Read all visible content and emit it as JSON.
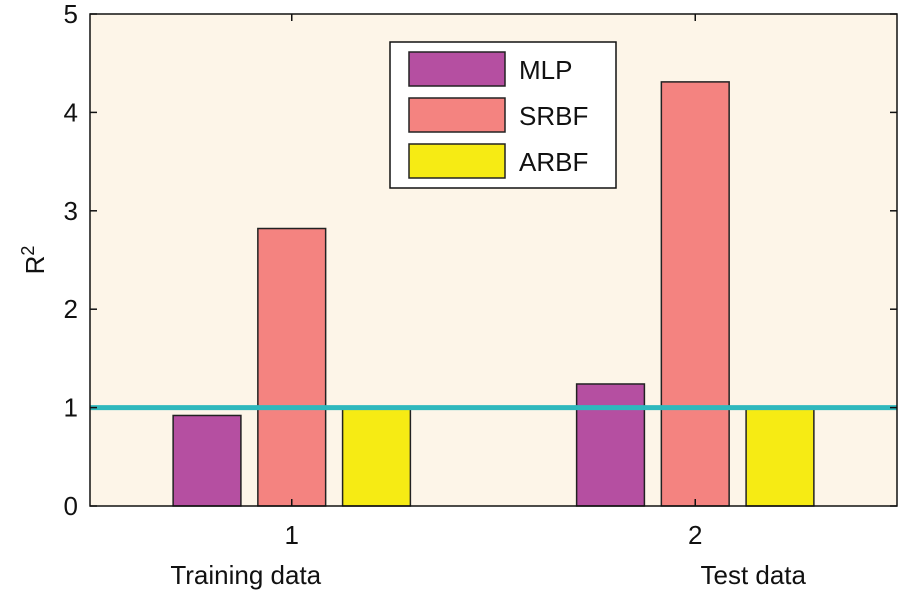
{
  "chart_data": {
    "type": "bar",
    "categories": [
      "1",
      "2"
    ],
    "category_labels": [
      "Training data",
      "Test data"
    ],
    "series": [
      {
        "name": "MLP",
        "values": [
          0.92,
          1.24
        ],
        "color": "#b54fa1"
      },
      {
        "name": "SRBF",
        "values": [
          2.82,
          4.31
        ],
        "color": "#f48380"
      },
      {
        "name": "ARBF",
        "values": [
          1.0,
          1.0
        ],
        "color": "#f6eb14"
      }
    ],
    "ylabel": "R",
    "ylabel_superscript": "2",
    "ylim": [
      0,
      5
    ],
    "yticks": [
      0,
      1,
      2,
      3,
      4,
      5
    ],
    "reference_line": {
      "y": 1,
      "color": "#2fb8bd"
    },
    "legend_placement": "top-center",
    "background_color": "#fdf5e8",
    "grid": false
  }
}
